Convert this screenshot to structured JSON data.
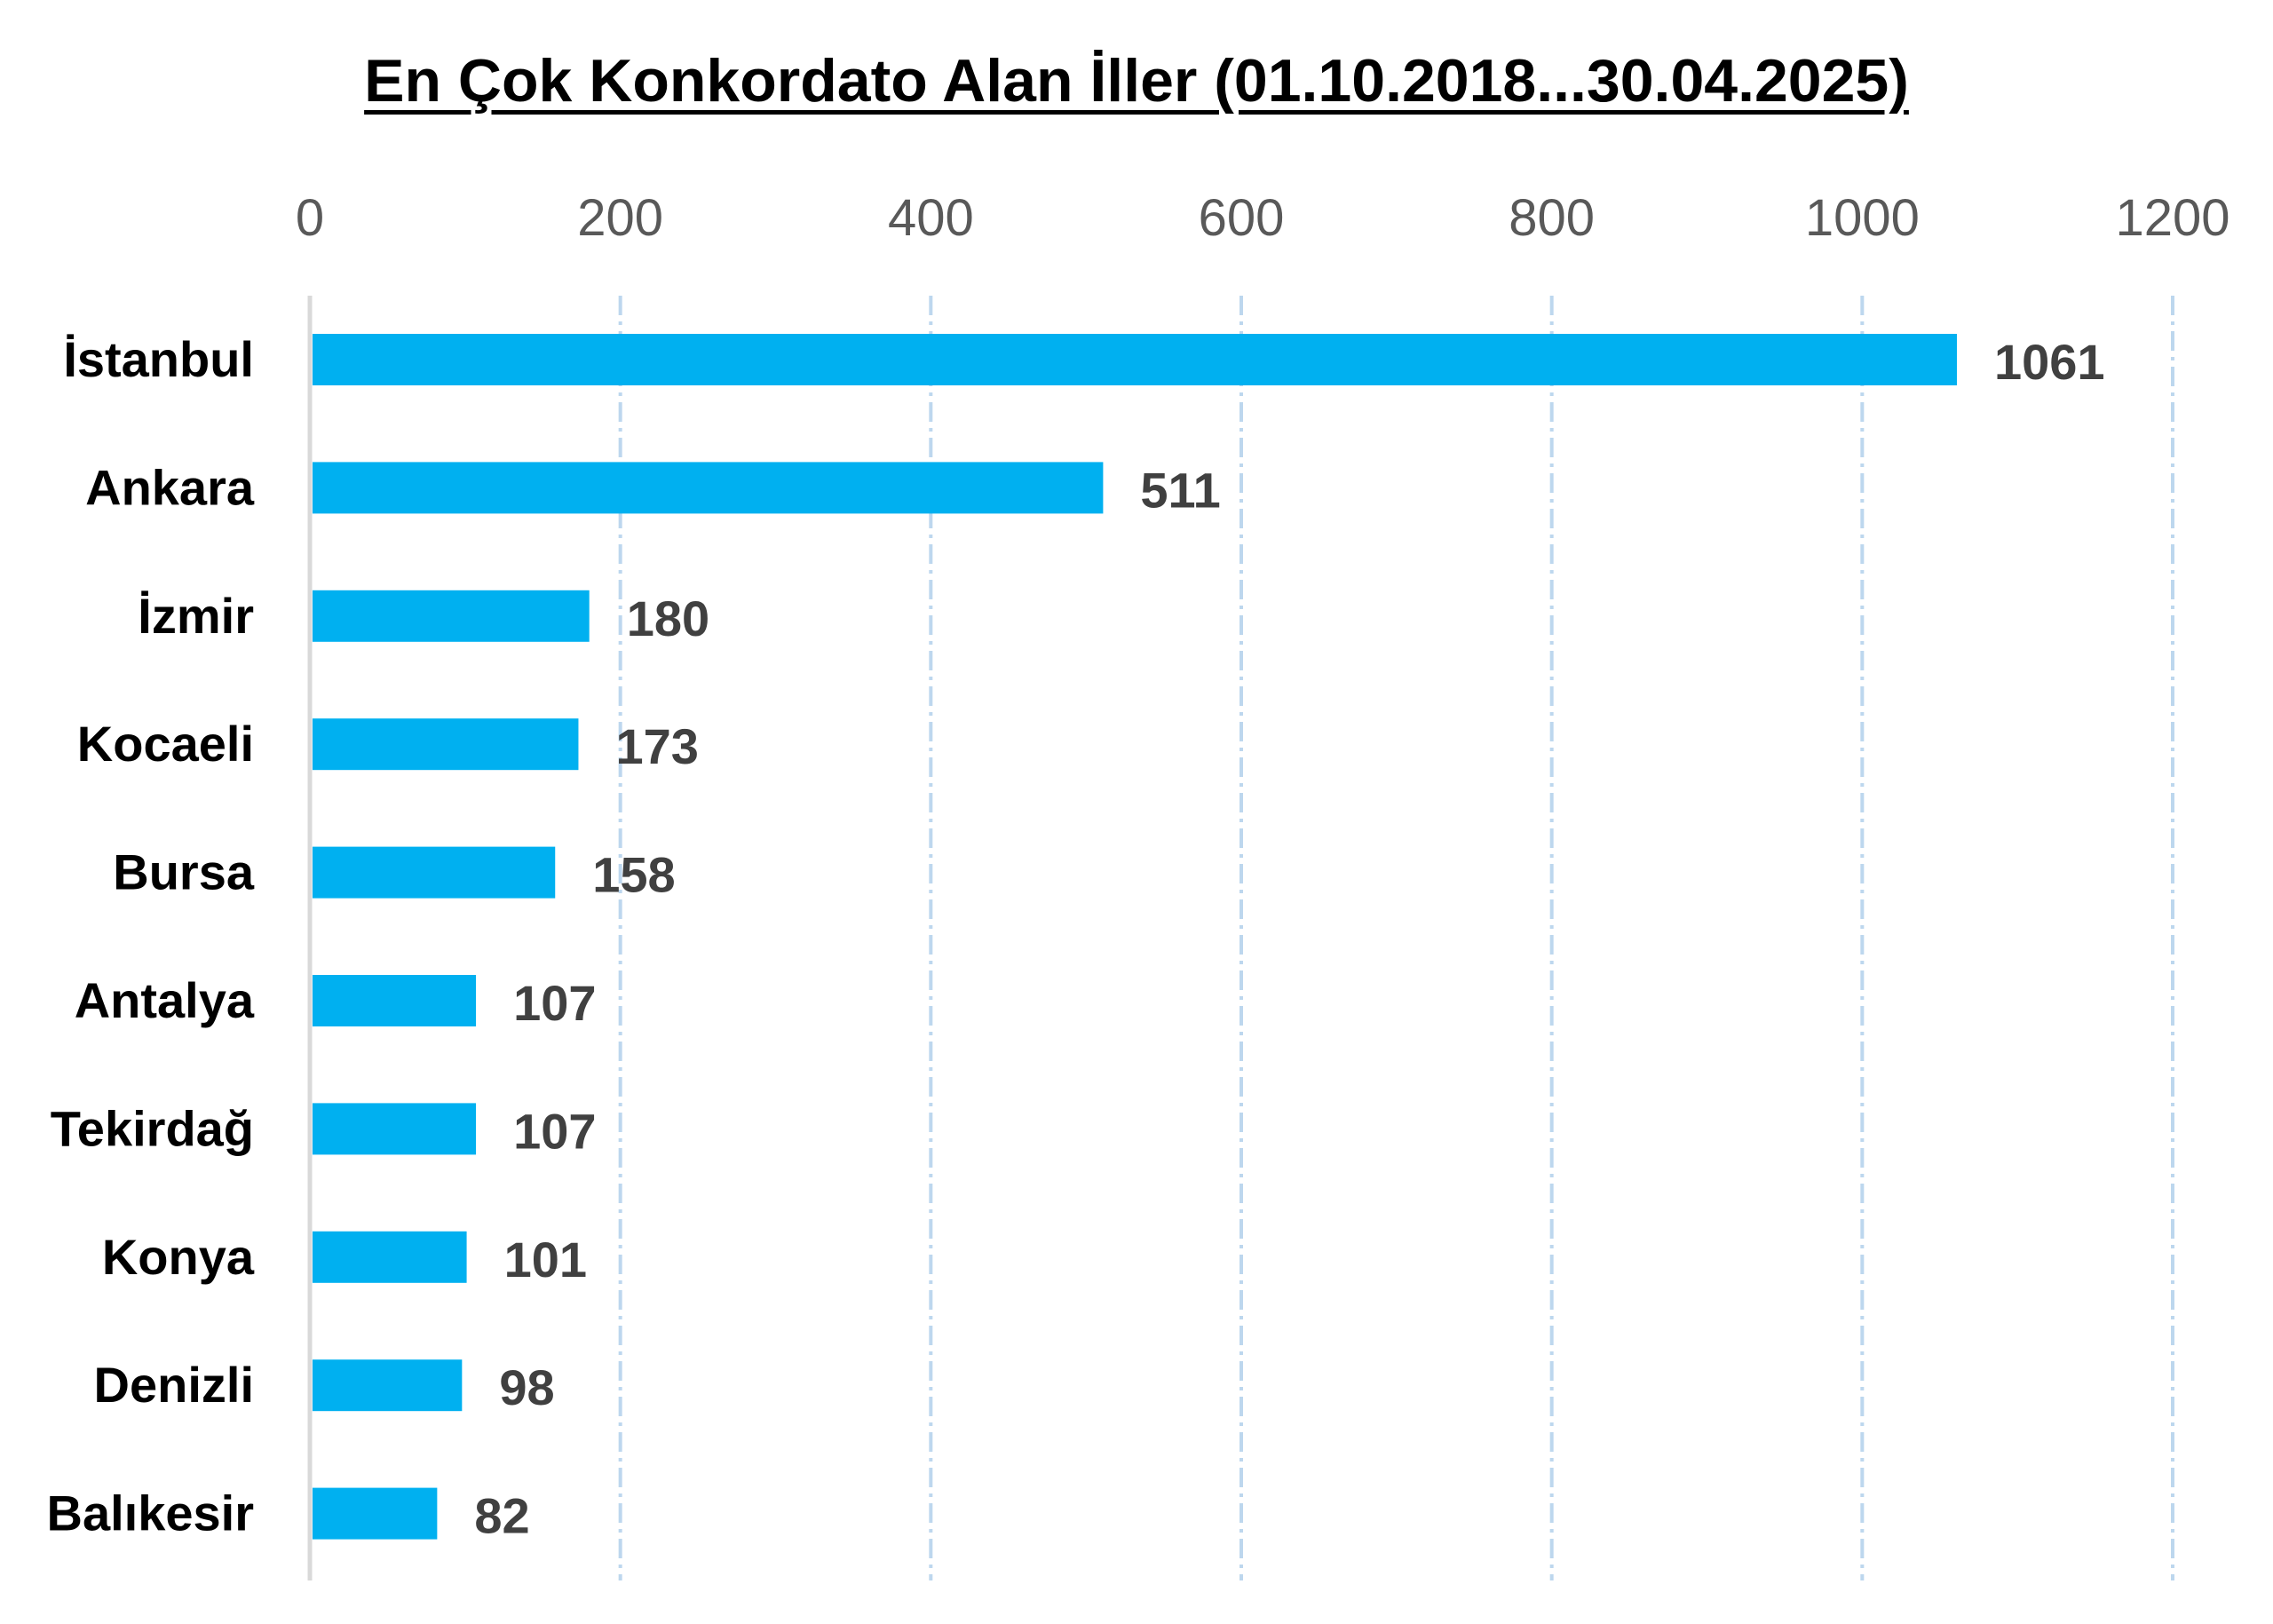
{
  "chart_data": {
    "type": "bar",
    "orientation": "horizontal",
    "title": "En Çok Konkordato Alan İller (01.10.2018...30.04.2025)",
    "categories": [
      "İstanbul",
      "Ankara",
      "İzmir",
      "Kocaeli",
      "Bursa",
      "Antalya",
      "Tekirdağ",
      "Konya",
      "Denizli",
      "Balıkesir"
    ],
    "values": [
      1061,
      511,
      180,
      173,
      158,
      107,
      107,
      101,
      98,
      82
    ],
    "xlim": [
      0,
      1200
    ],
    "xticks": [
      0,
      200,
      400,
      600,
      800,
      1000,
      1200
    ],
    "xtick_labels": [
      "0",
      "200",
      "400",
      "600",
      "800",
      "1000",
      "1200"
    ],
    "x_axis_position": "top",
    "xlabel": "",
    "ylabel": "",
    "grid": "vertical dashed",
    "legend": "none",
    "data_labels": true,
    "bar_color": "#00B0F0",
    "gridline_color": "#BDD7EE",
    "axis_line_color": "#D9D9D9",
    "tick_label_color": "#595959",
    "data_label_color": "#404040"
  }
}
